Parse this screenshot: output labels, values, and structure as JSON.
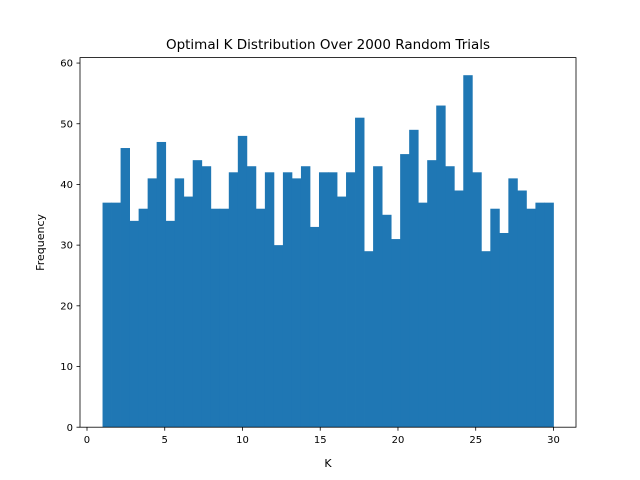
{
  "chart_data": {
    "type": "bar",
    "title": "Optimal K Distribution Over 2000 Random Trials",
    "xlabel": "K",
    "ylabel": "Frequency",
    "xlim": [
      -0.45,
      31.45
    ],
    "ylim": [
      0,
      60.9
    ],
    "xticks": [
      0,
      5,
      10,
      15,
      20,
      25,
      30
    ],
    "yticks": [
      0,
      10,
      20,
      30,
      40,
      50,
      60
    ],
    "bin_range": [
      1,
      30
    ],
    "values": [
      37,
      37,
      46,
      34,
      36,
      41,
      47,
      34,
      41,
      38,
      44,
      43,
      36,
      36,
      42,
      48,
      43,
      36,
      42,
      30,
      42,
      41,
      43,
      33,
      42,
      42,
      38,
      42,
      51,
      29,
      43,
      35,
      31,
      45,
      49,
      37,
      44,
      53,
      43,
      39,
      58,
      42,
      29,
      36,
      32,
      41,
      39,
      36,
      37,
      37
    ],
    "bar_color": "#1f77b4",
    "grid": false
  }
}
